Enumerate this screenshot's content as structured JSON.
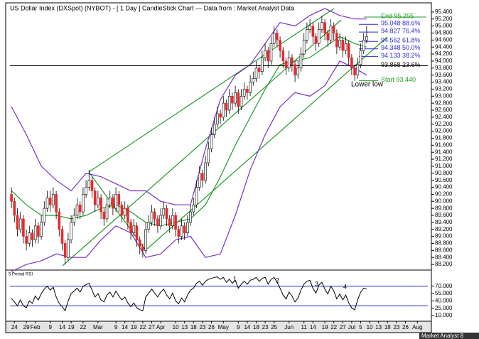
{
  "chart_data": {
    "type": "candlestick",
    "title": "US Dollar Index (DXSpot) (NYBOT) -  [ 1 Day ] CandleStick Chart — Data from : Market Analyst Data",
    "categories": [
      null,
      "24",
      null,
      null,
      null,
      "29",
      null,
      null,
      "Feb",
      null,
      null,
      null,
      null,
      "9",
      null,
      null,
      null,
      "14",
      null,
      null,
      "19",
      null,
      null,
      null,
      "22",
      null,
      null,
      null,
      null,
      "Mar",
      null,
      null,
      null,
      null,
      null,
      "9",
      null,
      null,
      "14",
      null,
      null,
      "19",
      null,
      null,
      "22",
      null,
      null,
      "27",
      null,
      null,
      "Apr",
      null,
      null,
      null,
      null,
      "10",
      null,
      null,
      "13",
      null,
      null,
      "18",
      null,
      null,
      "23",
      null,
      null,
      "26",
      null,
      null,
      null,
      "May",
      null,
      null,
      null,
      null,
      "9",
      null,
      null,
      "14",
      null,
      null,
      "18",
      null,
      null,
      "23",
      null,
      null,
      "25",
      null,
      null,
      null,
      null,
      "Jun",
      null,
      null,
      null,
      null,
      "11",
      null,
      null,
      "14",
      null,
      null,
      null,
      "19",
      null,
      null,
      "22",
      null,
      null,
      "27",
      null,
      null,
      "Jul",
      null,
      null,
      "5",
      null,
      null,
      "10",
      null,
      null,
      "13",
      null,
      null,
      "18",
      null,
      null,
      "23",
      null,
      null,
      "26",
      null,
      null,
      null,
      "Aug",
      null,
      null,
      null
    ],
    "ohlc": [
      [
        90.2,
        90.4,
        89.8,
        90.0
      ],
      [
        90.0,
        90.1,
        89.4,
        89.6
      ],
      [
        89.6,
        89.8,
        89.0,
        89.2
      ],
      [
        89.2,
        89.7,
        89.1,
        89.5
      ],
      [
        89.5,
        89.6,
        88.8,
        89.0
      ],
      [
        89.0,
        89.2,
        88.6,
        88.8
      ],
      [
        88.8,
        89.3,
        88.7,
        89.1
      ],
      [
        89.1,
        89.2,
        88.7,
        88.9
      ],
      [
        88.9,
        89.5,
        88.8,
        89.3
      ],
      [
        89.3,
        89.4,
        88.8,
        89.0
      ],
      [
        89.0,
        89.6,
        88.9,
        89.4
      ],
      [
        89.4,
        90.0,
        89.3,
        89.8
      ],
      [
        89.8,
        90.3,
        89.7,
        90.1
      ],
      [
        90.1,
        90.3,
        89.7,
        89.9
      ],
      [
        89.9,
        90.4,
        89.8,
        90.2
      ],
      [
        90.2,
        90.3,
        89.5,
        89.7
      ],
      [
        89.7,
        89.8,
        89.0,
        89.2
      ],
      [
        89.2,
        89.3,
        88.6,
        88.8
      ],
      [
        88.8,
        88.9,
        88.2,
        88.4
      ],
      [
        88.4,
        89.1,
        88.3,
        88.9
      ],
      [
        88.9,
        89.6,
        88.8,
        89.4
      ],
      [
        89.4,
        89.8,
        89.3,
        89.6
      ],
      [
        89.6,
        90.1,
        89.5,
        89.9
      ],
      [
        89.9,
        90.0,
        89.5,
        89.7
      ],
      [
        89.7,
        90.4,
        89.6,
        90.2
      ],
      [
        90.2,
        90.6,
        90.1,
        90.4
      ],
      [
        90.4,
        90.9,
        90.3,
        90.6
      ],
      [
        90.6,
        90.7,
        90.1,
        90.3
      ],
      [
        90.3,
        90.4,
        89.7,
        89.9
      ],
      [
        89.9,
        90.3,
        89.8,
        90.1
      ],
      [
        90.1,
        90.2,
        89.5,
        89.7
      ],
      [
        89.7,
        89.8,
        89.3,
        89.5
      ],
      [
        89.5,
        90.1,
        89.4,
        89.9
      ],
      [
        89.9,
        90.3,
        89.8,
        90.1
      ],
      [
        90.1,
        90.2,
        89.6,
        89.8
      ],
      [
        89.8,
        90.4,
        89.7,
        90.2
      ],
      [
        90.2,
        90.3,
        89.7,
        89.9
      ],
      [
        89.9,
        90.0,
        89.4,
        89.6
      ],
      [
        89.6,
        90.0,
        89.5,
        89.8
      ],
      [
        89.8,
        89.9,
        89.2,
        89.4
      ],
      [
        89.4,
        89.5,
        88.9,
        89.1
      ],
      [
        89.1,
        89.5,
        89.0,
        89.3
      ],
      [
        89.3,
        89.4,
        88.7,
        88.9
      ],
      [
        88.9,
        89.0,
        88.5,
        88.7
      ],
      [
        88.7,
        88.8,
        88.4,
        88.6
      ],
      [
        88.6,
        89.4,
        88.5,
        89.2
      ],
      [
        89.2,
        89.6,
        89.1,
        89.4
      ],
      [
        89.4,
        89.9,
        89.3,
        89.7
      ],
      [
        89.7,
        89.8,
        89.3,
        89.5
      ],
      [
        89.5,
        89.6,
        89.1,
        89.3
      ],
      [
        89.3,
        89.8,
        89.2,
        89.6
      ],
      [
        89.6,
        90.0,
        89.5,
        89.8
      ],
      [
        89.8,
        89.9,
        89.3,
        89.5
      ],
      [
        89.5,
        89.6,
        89.1,
        89.3
      ],
      [
        89.3,
        89.8,
        89.2,
        89.6
      ],
      [
        89.6,
        89.7,
        89.0,
        89.2
      ],
      [
        89.2,
        89.3,
        88.8,
        89.0
      ],
      [
        89.0,
        89.5,
        88.9,
        89.3
      ],
      [
        89.3,
        89.4,
        88.9,
        89.1
      ],
      [
        89.1,
        89.6,
        89.0,
        89.4
      ],
      [
        89.4,
        89.9,
        89.3,
        89.7
      ],
      [
        89.7,
        90.1,
        89.6,
        89.9
      ],
      [
        89.9,
        90.6,
        89.8,
        90.4
      ],
      [
        90.4,
        91.0,
        90.3,
        90.8
      ],
      [
        90.8,
        90.9,
        90.4,
        90.6
      ],
      [
        90.6,
        91.3,
        90.5,
        91.1
      ],
      [
        91.1,
        91.7,
        91.0,
        91.5
      ],
      [
        91.5,
        92.1,
        91.4,
        91.9
      ],
      [
        91.9,
        92.4,
        91.8,
        92.2
      ],
      [
        92.2,
        92.7,
        92.1,
        92.5
      ],
      [
        92.5,
        92.6,
        92.2,
        92.4
      ],
      [
        92.4,
        93.0,
        92.3,
        92.8
      ],
      [
        92.8,
        92.9,
        92.4,
        92.6
      ],
      [
        92.6,
        93.2,
        92.5,
        93.0
      ],
      [
        93.0,
        93.1,
        92.6,
        92.8
      ],
      [
        92.8,
        93.3,
        92.7,
        93.1
      ],
      [
        93.1,
        93.2,
        92.5,
        92.7
      ],
      [
        92.7,
        93.2,
        92.6,
        93.0
      ],
      [
        93.0,
        93.4,
        92.9,
        93.2
      ],
      [
        93.2,
        93.3,
        92.9,
        93.1
      ],
      [
        93.1,
        93.6,
        93.0,
        93.4
      ],
      [
        93.4,
        93.7,
        93.3,
        93.5
      ],
      [
        93.5,
        94.0,
        93.4,
        93.8
      ],
      [
        93.8,
        93.9,
        93.5,
        93.7
      ],
      [
        93.7,
        94.3,
        93.6,
        94.1
      ],
      [
        94.1,
        94.5,
        94.0,
        94.3
      ],
      [
        94.3,
        94.4,
        93.8,
        94.0
      ],
      [
        94.0,
        94.7,
        93.9,
        94.5
      ],
      [
        94.5,
        95.0,
        94.4,
        94.8
      ],
      [
        94.8,
        94.9,
        94.4,
        94.6
      ],
      [
        94.6,
        94.7,
        94.1,
        94.3
      ],
      [
        94.3,
        94.4,
        93.8,
        94.0
      ],
      [
        94.0,
        94.1,
        93.6,
        93.8
      ],
      [
        93.8,
        94.3,
        93.7,
        94.1
      ],
      [
        94.1,
        94.2,
        93.7,
        93.9
      ],
      [
        93.9,
        94.0,
        93.4,
        93.6
      ],
      [
        93.6,
        94.0,
        93.5,
        93.8
      ],
      [
        93.8,
        94.4,
        93.7,
        94.2
      ],
      [
        94.2,
        94.8,
        94.1,
        94.6
      ],
      [
        94.6,
        95.1,
        94.5,
        94.9
      ],
      [
        94.9,
        95.2,
        94.8,
        95.0
      ],
      [
        95.0,
        95.1,
        94.5,
        94.7
      ],
      [
        94.7,
        94.8,
        94.3,
        94.5
      ],
      [
        94.5,
        95.1,
        94.4,
        94.9
      ],
      [
        94.9,
        95.3,
        94.8,
        95.1
      ],
      [
        95.1,
        95.2,
        94.6,
        94.8
      ],
      [
        94.8,
        94.9,
        94.4,
        94.6
      ],
      [
        94.6,
        95.2,
        94.5,
        95.0
      ],
      [
        95.0,
        95.1,
        94.6,
        94.8
      ],
      [
        94.8,
        94.9,
        94.2,
        94.4
      ],
      [
        94.4,
        94.8,
        94.3,
        94.6
      ],
      [
        94.6,
        94.7,
        94.1,
        94.3
      ],
      [
        94.3,
        94.7,
        94.2,
        94.5
      ],
      [
        94.5,
        94.6,
        93.9,
        94.1
      ],
      [
        94.1,
        94.2,
        93.6,
        93.8
      ],
      [
        93.8,
        93.9,
        93.44,
        93.6
      ],
      [
        93.6,
        94.1,
        93.5,
        93.9
      ],
      [
        93.9,
        94.5,
        93.8,
        94.3
      ],
      [
        94.3,
        94.8,
        94.2,
        94.6
      ],
      [
        94.6,
        95.0,
        94.5,
        94.7
      ],
      null,
      null,
      null,
      null,
      null,
      null,
      null,
      null,
      null,
      null,
      null,
      null,
      null,
      null,
      null,
      null,
      null,
      null,
      null,
      null
    ],
    "up_color": "#ffffff",
    "down_color": "#e8282b",
    "ylim": [
      88.08,
      95.58
    ],
    "yticks": [
      {
        "value": 88.2,
        "label": "88.200"
      },
      {
        "value": 88.4,
        "label": "88.400"
      },
      {
        "value": 88.6,
        "label": "88.600"
      },
      {
        "value": 88.8,
        "label": "88.800"
      },
      {
        "value": 89.0,
        "label": "89.000"
      },
      {
        "value": 89.2,
        "label": "89.200"
      },
      {
        "value": 89.4,
        "label": "89.400"
      },
      {
        "value": 89.6,
        "label": "89.600"
      },
      {
        "value": 89.8,
        "label": "89.800"
      },
      {
        "value": 90.0,
        "label": "90.000"
      },
      {
        "value": 90.2,
        "label": "90.200"
      },
      {
        "value": 90.4,
        "label": "90.400"
      },
      {
        "value": 90.6,
        "label": "90.600"
      },
      {
        "value": 90.8,
        "label": "90.800"
      },
      {
        "value": 91.0,
        "label": "91.000"
      },
      {
        "value": 91.2,
        "label": "91.200"
      },
      {
        "value": 91.4,
        "label": "91.400"
      },
      {
        "value": 91.6,
        "label": "91.600"
      },
      {
        "value": 91.8,
        "label": "91.800"
      },
      {
        "value": 92.0,
        "label": "92.000"
      },
      {
        "value": 92.2,
        "label": "92.200"
      },
      {
        "value": 92.4,
        "label": "92.400"
      },
      {
        "value": 92.6,
        "label": "92.600"
      },
      {
        "value": 92.8,
        "label": "92.800"
      },
      {
        "value": 93.0,
        "label": "93.000"
      },
      {
        "value": 93.2,
        "label": "93.200"
      },
      {
        "value": 93.4,
        "label": "93.400"
      },
      {
        "value": 93.6,
        "label": "93.600"
      },
      {
        "value": 93.8,
        "label": "93.800"
      },
      {
        "value": 94.0,
        "label": "94.000"
      },
      {
        "value": 94.2,
        "label": "94.200"
      },
      {
        "value": 94.4,
        "label": "94.400"
      },
      {
        "value": 94.6,
        "label": "94.600"
      },
      {
        "value": 94.8,
        "label": "94.800"
      },
      {
        "value": 95.0,
        "label": "95.000"
      },
      {
        "value": 95.2,
        "label": "95.200"
      },
      {
        "value": 95.4,
        "label": "95.400"
      }
    ],
    "bands": {
      "x": [
        0,
        5,
        10,
        15,
        20,
        25,
        30,
        35,
        40,
        45,
        50,
        55,
        60,
        65,
        70,
        75,
        80,
        85,
        90,
        95,
        100,
        105,
        110,
        115,
        119
      ],
      "upper": [
        92.7,
        91.9,
        91.0,
        90.6,
        90.3,
        90.8,
        90.7,
        90.5,
        90.3,
        90.3,
        90.0,
        89.9,
        89.9,
        91.5,
        92.9,
        93.6,
        93.9,
        94.5,
        95.1,
        95.0,
        95.3,
        95.5,
        95.3,
        95.2,
        95.2
      ],
      "middle": [
        90.3,
        89.9,
        89.6,
        89.6,
        89.5,
        89.6,
        89.8,
        89.9,
        89.7,
        89.4,
        89.3,
        89.4,
        89.5,
        89.9,
        90.7,
        91.6,
        92.4,
        93.2,
        93.9,
        94.0,
        94.1,
        94.4,
        94.7,
        94.5,
        94.4
      ],
      "lower": [
        88.0,
        88.2,
        88.3,
        88.5,
        88.4,
        88.4,
        88.9,
        89.3,
        89.1,
        88.4,
        88.5,
        88.9,
        89.0,
        88.4,
        88.5,
        89.6,
        90.9,
        91.9,
        92.7,
        93.1,
        93.0,
        93.3,
        94.0,
        93.8,
        93.6
      ],
      "band_color": "#7a2ec8",
      "middle_color": "#1f9a2a"
    },
    "fib_end": {
      "value": 95.255,
      "label": "End 95.255"
    },
    "fib_levels": [
      {
        "value": 95.048,
        "label": "95.048 88.6%"
      },
      {
        "value": 94.827,
        "label": "94.827 76.4%"
      },
      {
        "value": 94.562,
        "label": "94.562 61.8%"
      },
      {
        "value": 94.348,
        "label": "94.348 50.0%"
      },
      {
        "value": 94.133,
        "label": "94.133 38.2%"
      },
      {
        "value": 93.868,
        "label": "93.868 23.6%"
      }
    ],
    "fib_start": {
      "value": 93.44,
      "label": "Start 93.440"
    },
    "fib_color": "#2a2ad0",
    "fib_edge_color": "#1f9a2a",
    "annotation": "Lower low",
    "source": "Market Analyst 8",
    "rsi": {
      "type": "line",
      "label": "5 Period RSI",
      "values": [
        45,
        38,
        30,
        42,
        30,
        26,
        40,
        35,
        50,
        42,
        55,
        64,
        70,
        62,
        68,
        48,
        35,
        28,
        20,
        40,
        55,
        60,
        66,
        58,
        70,
        73,
        76,
        62,
        48,
        55,
        42,
        38,
        52,
        58,
        48,
        60,
        50,
        42,
        48,
        36,
        28,
        36,
        26,
        22,
        20,
        48,
        56,
        64,
        56,
        48,
        58,
        64,
        52,
        44,
        56,
        40,
        34,
        46,
        38,
        52,
        62,
        66,
        76,
        80,
        72,
        80,
        84,
        86,
        88,
        89,
        84,
        88,
        78,
        84,
        76,
        82,
        66,
        74,
        80,
        74,
        82,
        84,
        88,
        80,
        86,
        88,
        74,
        84,
        88,
        78,
        66,
        52,
        44,
        58,
        50,
        38,
        46,
        62,
        74,
        80,
        82,
        66,
        56,
        72,
        78,
        64,
        54,
        70,
        60,
        44,
        54,
        42,
        52,
        36,
        26,
        22,
        42,
        58,
        66,
        64,
        null,
        null,
        null,
        null,
        null,
        null,
        null,
        null,
        null,
        null,
        null,
        null,
        null,
        null,
        null,
        null,
        null,
        null,
        null,
        null
      ],
      "ylim": [
        0,
        100
      ],
      "yticks": [
        {
          "value": 70,
          "label": "70.000"
        },
        {
          "value": 55,
          "label": "55.000"
        },
        {
          "value": 40,
          "label": "40.000"
        },
        {
          "value": 25,
          "label": "25.000"
        },
        {
          "value": 10,
          "label": "10.000"
        }
      ],
      "levels": [
        70,
        30
      ],
      "level_color": "#2a2ad0",
      "annotations": [
        "1",
        "2",
        "3",
        "4"
      ]
    }
  }
}
